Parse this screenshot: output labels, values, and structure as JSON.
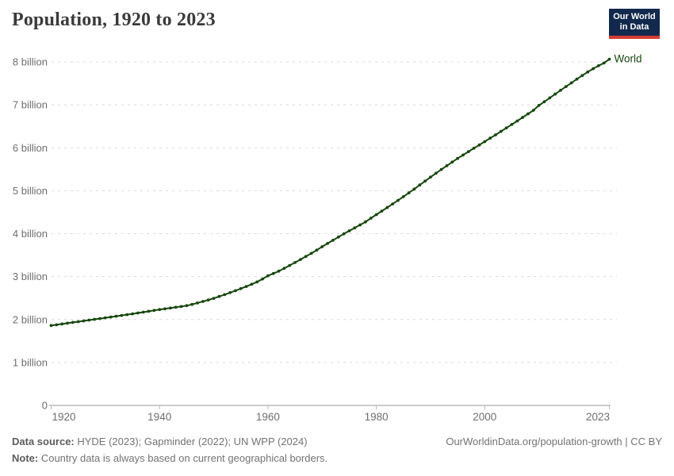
{
  "header": {
    "title": "Population, 1920 to 2023"
  },
  "logo": {
    "line1": "Our World",
    "line2": "in Data"
  },
  "colors": {
    "line": "#18470F",
    "grid": "#dadada",
    "axis": "#9a9a9a",
    "tick": "#b8b8b8",
    "tick_label": "#6e6e6e",
    "title_text": "#3a3a3a",
    "logo_bg": "#12294d",
    "logo_bar": "#d73b33",
    "footer_text": "#737373"
  },
  "chart_data": {
    "type": "line",
    "title": "Population, 1920 to 2023",
    "xlabel": "",
    "ylabel": "",
    "unit": "billion people",
    "x_range": [
      1920,
      2023
    ],
    "ylim": [
      0,
      8.3
    ],
    "grid": "horizontal-dashed",
    "legend": "inline-end-label",
    "x_ticks": [
      {
        "value": 1920,
        "label": "1920"
      },
      {
        "value": 1940,
        "label": "1940"
      },
      {
        "value": 1960,
        "label": "1960"
      },
      {
        "value": 1980,
        "label": "1980"
      },
      {
        "value": 2000,
        "label": "2000"
      },
      {
        "value": 2023,
        "label": "2023"
      }
    ],
    "y_ticks": [
      {
        "value": 0,
        "label": "0"
      },
      {
        "value": 1,
        "label": "1 billion"
      },
      {
        "value": 2,
        "label": "2 billion"
      },
      {
        "value": 3,
        "label": "3 billion"
      },
      {
        "value": 4,
        "label": "4 billion"
      },
      {
        "value": 5,
        "label": "5 billion"
      },
      {
        "value": 6,
        "label": "6 billion"
      },
      {
        "value": 7,
        "label": "7 billion"
      },
      {
        "value": 8,
        "label": "8 billion"
      }
    ],
    "years": [
      1920,
      1921,
      1922,
      1923,
      1924,
      1925,
      1926,
      1927,
      1928,
      1929,
      1930,
      1931,
      1932,
      1933,
      1934,
      1935,
      1936,
      1937,
      1938,
      1939,
      1940,
      1941,
      1942,
      1943,
      1944,
      1945,
      1946,
      1947,
      1948,
      1949,
      1950,
      1951,
      1952,
      1953,
      1954,
      1955,
      1956,
      1957,
      1958,
      1959,
      1960,
      1961,
      1962,
      1963,
      1964,
      1965,
      1966,
      1967,
      1968,
      1969,
      1970,
      1971,
      1972,
      1973,
      1974,
      1975,
      1976,
      1977,
      1978,
      1979,
      1980,
      1981,
      1982,
      1983,
      1984,
      1985,
      1986,
      1987,
      1988,
      1989,
      1990,
      1991,
      1992,
      1993,
      1994,
      1995,
      1996,
      1997,
      1998,
      1999,
      2000,
      2001,
      2002,
      2003,
      2004,
      2005,
      2006,
      2007,
      2008,
      2009,
      2010,
      2011,
      2012,
      2013,
      2014,
      2015,
      2016,
      2017,
      2018,
      2019,
      2020,
      2021,
      2022,
      2023
    ],
    "series": [
      {
        "name": "World",
        "color": "#18470F",
        "values": [
          1.86,
          1.878,
          1.896,
          1.914,
          1.932,
          1.95,
          1.968,
          1.986,
          2.004,
          2.022,
          2.04,
          2.058,
          2.076,
          2.095,
          2.114,
          2.133,
          2.152,
          2.171,
          2.191,
          2.211,
          2.231,
          2.249,
          2.267,
          2.285,
          2.303,
          2.322,
          2.352,
          2.385,
          2.42,
          2.456,
          2.493,
          2.536,
          2.58,
          2.625,
          2.671,
          2.719,
          2.769,
          2.821,
          2.874,
          2.945,
          3.019,
          3.07,
          3.126,
          3.193,
          3.26,
          3.328,
          3.398,
          3.468,
          3.54,
          3.615,
          3.695,
          3.77,
          3.845,
          3.92,
          3.994,
          4.064,
          4.133,
          4.203,
          4.274,
          4.36,
          4.444,
          4.524,
          4.607,
          4.691,
          4.775,
          4.861,
          4.949,
          5.039,
          5.132,
          5.224,
          5.316,
          5.406,
          5.494,
          5.581,
          5.666,
          5.751,
          5.831,
          5.91,
          5.988,
          6.065,
          6.144,
          6.222,
          6.301,
          6.381,
          6.461,
          6.542,
          6.623,
          6.706,
          6.789,
          6.873,
          6.986,
          7.073,
          7.161,
          7.25,
          7.339,
          7.426,
          7.513,
          7.6,
          7.683,
          7.765,
          7.841,
          7.909,
          7.975,
          8.062
        ]
      }
    ]
  },
  "footer": {
    "source_label": "Data source:",
    "source_text": " HYDE (2023); Gapminder (2022); UN WPP (2024)",
    "note_label": "Note:",
    "note_text": " Country data is always based on current geographical borders.",
    "link": "OurWorldinData.org/population-growth | CC BY"
  }
}
